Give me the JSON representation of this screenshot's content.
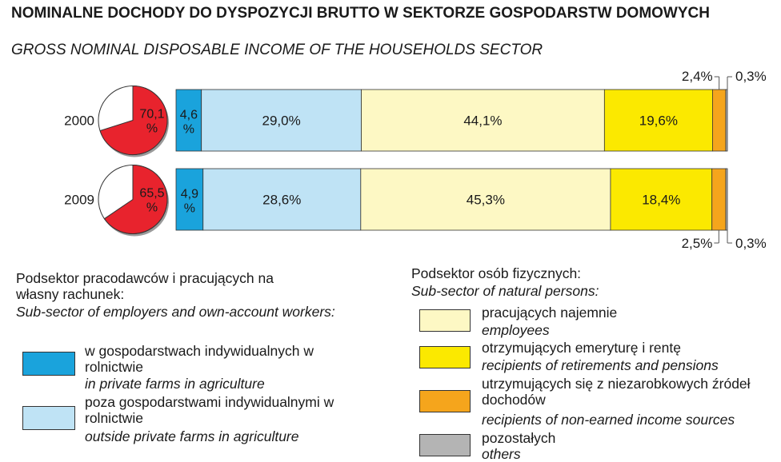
{
  "title_pl": "NOMINALNE DOCHODY DO DYSPOZYCJI BRUTTO W SEKTORZE GOSPODARSTW DOMOWYCH",
  "title_en": "GROSS NOMINAL DISPOSABLE INCOME OF THE HOUSEHOLDS SECTOR",
  "colors": {
    "private_farms": "#1aa3dc",
    "outside_farms": "#bfe3f5",
    "employees": "#fdf8c4",
    "retirement": "#fbe900",
    "non_earned": "#f5a51c",
    "others": "#b4b4b4",
    "pie_red": "#e8232d"
  },
  "chart_data": {
    "type": "bar",
    "stacked": true,
    "orientation": "horizontal",
    "categories": [
      "2000",
      "2009"
    ],
    "series": [
      {
        "key": "private_farms",
        "values": [
          4.6,
          4.9
        ],
        "labels": [
          "4,6 %",
          "4,9 %"
        ]
      },
      {
        "key": "outside_farms",
        "values": [
          29.0,
          28.6
        ],
        "labels": [
          "29,0%",
          "28,6%"
        ]
      },
      {
        "key": "employees",
        "values": [
          44.1,
          45.3
        ],
        "labels": [
          "44,1%",
          "45,3%"
        ]
      },
      {
        "key": "retirement",
        "values": [
          19.6,
          18.4
        ],
        "labels": [
          "19,6%",
          "18,4%"
        ]
      },
      {
        "key": "non_earned",
        "values": [
          2.4,
          2.5
        ],
        "labels": [
          "2,4%",
          "2,5%"
        ]
      },
      {
        "key": "others",
        "values": [
          0.3,
          0.3
        ],
        "labels": [
          "0,3%",
          "0,3%"
        ]
      }
    ],
    "pies": [
      {
        "year": "2000",
        "value": 70.1,
        "label": "70,1 %"
      },
      {
        "year": "2009",
        "value": 65.5,
        "label": "65,5 %"
      }
    ]
  },
  "legend": {
    "group1": {
      "title_pl": "Podsektor pracodawców i pracujących na własny rachunek:",
      "title_en": "Sub-sector of employers and own-account workers:",
      "items": [
        {
          "key": "private_farms",
          "pl": "w gospodarstwach indywidualnych w rolnictwie",
          "en": "in private farms in agriculture"
        },
        {
          "key": "outside_farms",
          "pl": "poza gospodarstwami indywidualnymi w rolnictwie",
          "en": "outside private farms in agriculture"
        }
      ]
    },
    "group2": {
      "title_pl": "Podsektor osób fizycznych:",
      "title_en": "Sub-sector of natural persons:",
      "items": [
        {
          "key": "employees",
          "pl": "pracujących najemnie",
          "en": "employees"
        },
        {
          "key": "retirement",
          "pl": "otrzymujących emeryturę i rentę",
          "en": "recipients of retirements and pensions"
        },
        {
          "key": "non_earned",
          "pl": "utrzymujących się z niezarobkowych źródeł dochodów",
          "en": "recipients of non-earned income sources"
        },
        {
          "key": "others",
          "pl": "pozostałych",
          "en": "others"
        }
      ]
    }
  }
}
